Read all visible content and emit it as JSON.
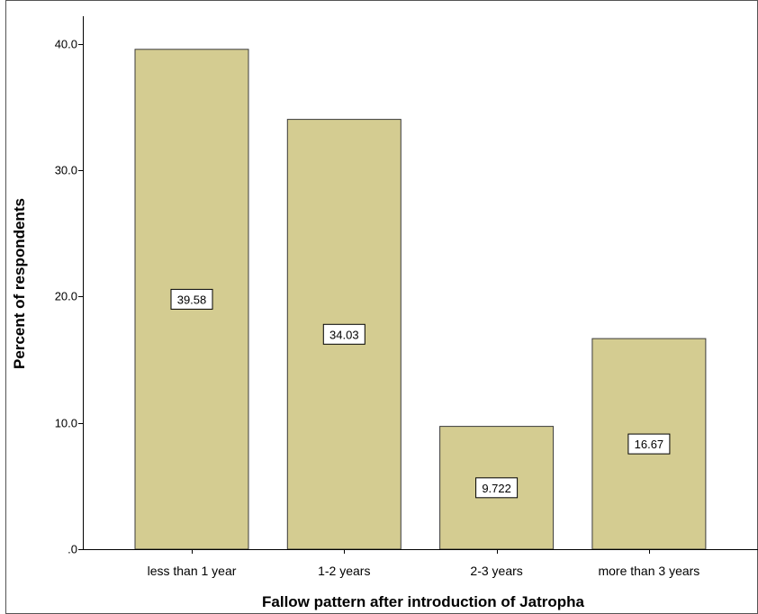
{
  "chart_data": {
    "type": "bar",
    "title": "",
    "xlabel": "Fallow pattern after introduction of Jatropha",
    "ylabel": "Percent of respondents",
    "categories": [
      "less than 1 year",
      "1-2 years",
      "2-3 years",
      "more than 3 years"
    ],
    "values": [
      39.58,
      34.03,
      9.722,
      16.67
    ],
    "data_labels": [
      "39.58",
      "34.03",
      "9.722",
      "16.67"
    ],
    "yticks": [
      0,
      10,
      20,
      30,
      40
    ],
    "ytick_labels": [
      ".0",
      "10.0",
      "20.0",
      "30.0",
      "40.0"
    ],
    "ylim": [
      0,
      42.2
    ],
    "grid": false,
    "legend": "none",
    "colors": {
      "bar_fill": "#d4cc91",
      "bar_stroke": "#3b3b3b",
      "axis": "#000000",
      "frame": "#555555"
    }
  }
}
